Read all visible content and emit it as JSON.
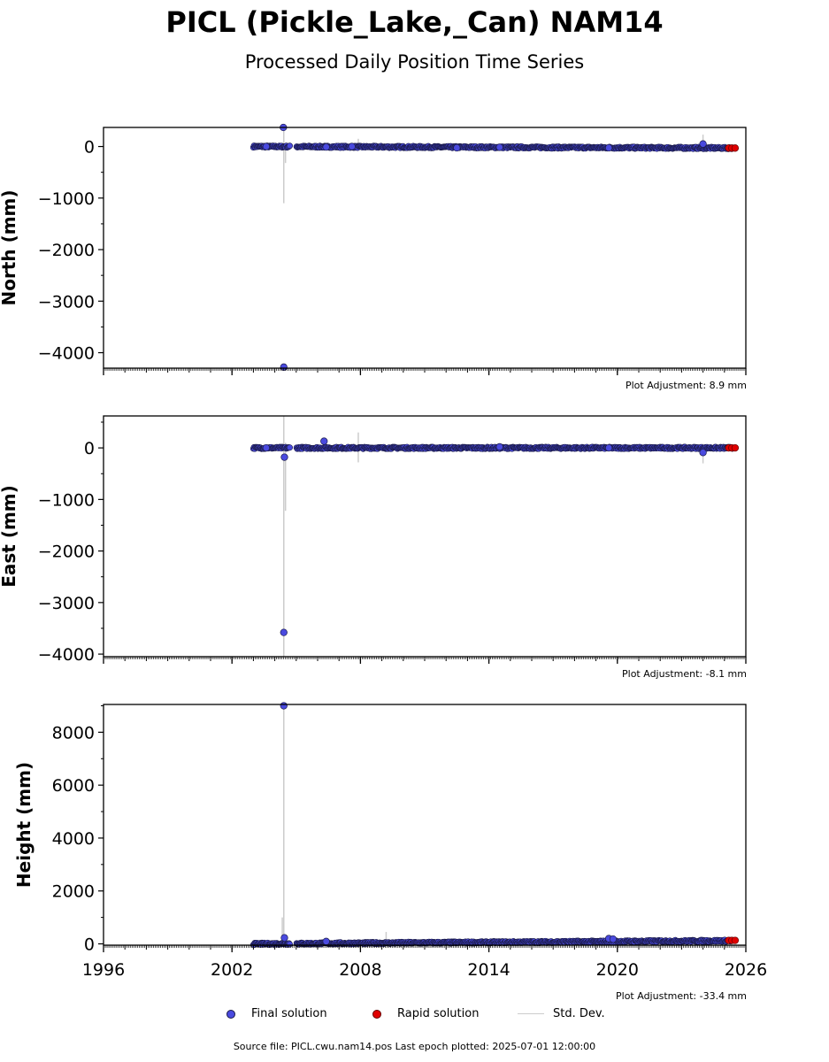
{
  "header": {
    "title": "PICL (Pickle_Lake,_Can) NAM14",
    "subtitle": "Processed Daily Position Time Series"
  },
  "legend": {
    "final": "Final solution",
    "rapid": "Rapid solution",
    "std": "Std. Dev."
  },
  "source": "Source file: PICL.cwu.nam14.pos  Last epoch plotted: 2025-07-01 12:00:00",
  "colors": {
    "final": "#4a4adf",
    "rapid": "#e00000",
    "edge": "#1b1b4a",
    "std": "#cccccc"
  },
  "chart_data": [
    {
      "type": "scatter",
      "ylabel": "North (mm)",
      "xlim": [
        1996,
        2026
      ],
      "ylim": [
        -4300,
        370
      ],
      "yticks": [
        0,
        -1000,
        -2000,
        -3000,
        -4000
      ],
      "xticks": [
        1996,
        2002,
        2008,
        2014,
        2020,
        2026
      ],
      "adjustment": "Plot Adjustment: 8.9 mm",
      "series": [
        {
          "kind": "final",
          "span": [
            2003.0,
            2025.4
          ],
          "start_value": 0,
          "end_value": -30
        },
        {
          "kind": "final_points",
          "x": [
            2004.4,
            2004.42,
            2003.6,
            2006.4,
            2007.6,
            2012.5,
            2014.5,
            2019.6,
            2024.0
          ],
          "y": [
            370,
            -4280,
            0,
            -10,
            0,
            -25,
            -15,
            -25,
            50
          ]
        },
        {
          "kind": "rapid",
          "x": [
            2025.2,
            2025.35,
            2025.5
          ],
          "y": [
            -30,
            -30,
            -30
          ]
        },
        {
          "kind": "std",
          "x": [
            2004.42,
            2004.5,
            2007.9,
            2024.0
          ],
          "low": [
            -1100,
            -320,
            -60,
            -40
          ],
          "high": [
            400,
            60,
            150,
            230
          ]
        }
      ]
    },
    {
      "type": "scatter",
      "ylabel": "East (mm)",
      "xlim": [
        1996,
        2026
      ],
      "ylim": [
        -4050,
        620
      ],
      "yticks": [
        0,
        -1000,
        -2000,
        -3000,
        -4000
      ],
      "xticks": [
        1996,
        2002,
        2008,
        2014,
        2020,
        2026
      ],
      "adjustment": "Plot Adjustment: -8.1 mm",
      "series": [
        {
          "kind": "final",
          "span": [
            2003.0,
            2025.4
          ],
          "start_value": 0,
          "end_value": 0
        },
        {
          "kind": "final_points",
          "x": [
            2004.42,
            2004.45,
            2003.6,
            2006.3,
            2014.5,
            2019.6,
            2024.0
          ],
          "y": [
            -3580,
            -180,
            0,
            130,
            20,
            0,
            -90
          ]
        },
        {
          "kind": "rapid",
          "x": [
            2025.2,
            2025.35,
            2025.5
          ],
          "y": [
            0,
            0,
            0
          ]
        },
        {
          "kind": "std",
          "x": [
            2004.42,
            2004.5,
            2007.9,
            2024.0
          ],
          "low": [
            -4050,
            -1220,
            -280,
            -300
          ],
          "high": [
            620,
            100,
            300,
            80
          ]
        }
      ]
    },
    {
      "type": "scatter",
      "ylabel": "Height (mm)",
      "xlim": [
        1996,
        2026
      ],
      "ylim": [
        -50,
        9050
      ],
      "yticks": [
        0,
        2000,
        4000,
        6000,
        8000
      ],
      "xticks": [
        1996,
        2002,
        2008,
        2014,
        2020,
        2026
      ],
      "adjustment": "Plot Adjustment: -33.4 mm",
      "series": [
        {
          "kind": "final",
          "span": [
            2003.0,
            2025.4
          ],
          "start_value": 0,
          "end_value": 120
        },
        {
          "kind": "final_points",
          "x": [
            2004.42,
            2004.45,
            2006.4,
            2019.6,
            2019.8
          ],
          "y": [
            9000,
            230,
            90,
            200,
            180
          ]
        },
        {
          "kind": "rapid",
          "x": [
            2025.2,
            2025.35,
            2025.5
          ],
          "y": [
            130,
            130,
            130
          ]
        },
        {
          "kind": "std",
          "x": [
            2004.42,
            2004.35,
            2009.2
          ],
          "low": [
            -50,
            0,
            0
          ],
          "high": [
            9050,
            1000,
            450
          ]
        }
      ]
    }
  ]
}
